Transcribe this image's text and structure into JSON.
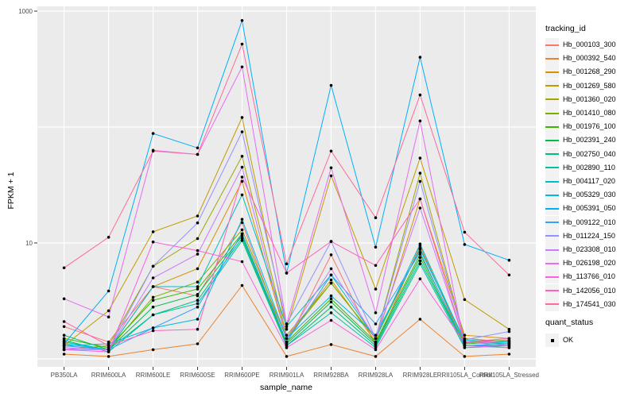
{
  "chart_data": {
    "type": "line",
    "title": "",
    "xlabel": "sample_name",
    "ylabel": "FPKM + 1",
    "y_scale": "log10",
    "ylim": [
      1,
      1000
    ],
    "grid": "major-white-on-gray",
    "legend_position": "right",
    "y_ticks": [
      {
        "label": "1000",
        "value": 1000
      },
      {
        "label": "10",
        "value": 10
      }
    ],
    "y_gridline_values": [
      1000,
      100,
      10,
      1
    ],
    "categories": [
      "PB350LA",
      "RRIM600LA",
      "RRIM600LE",
      "RRIM600SE",
      "RRIM600PE",
      "RRIM901LA",
      "RRIM928BA",
      "RRIM928LA",
      "RRIM928LE",
      "RRII105LA_Control",
      "RRII105LA_Stressed"
    ],
    "legend_title": "tracking_id",
    "series": [
      {
        "name": "Hb_000103_300",
        "color": "#F8766D",
        "values": [
          1.9,
          1.4,
          4.2,
          3.5,
          15,
          1.35,
          7.9,
          1.3,
          9.5,
          1.3,
          1.25
        ]
      },
      {
        "name": "Hb_000392_540",
        "color": "#EA8331",
        "values": [
          1.1,
          1.05,
          1.2,
          1.35,
          4.3,
          1.05,
          1.33,
          1.05,
          2.2,
          1.05,
          1.1
        ]
      },
      {
        "name": "Hb_001268_290",
        "color": "#D89000",
        "values": [
          1.3,
          1.2,
          4.2,
          6.0,
          34,
          1.5,
          4.8,
          1.4,
          24,
          1.6,
          1.5
        ]
      },
      {
        "name": "Hb_001269_580",
        "color": "#C09B00",
        "values": [
          1.3,
          2.6,
          12.5,
          17.1,
          121,
          1.8,
          38,
          4.0,
          54,
          3.25,
          1.8
        ]
      },
      {
        "name": "Hb_001360_020",
        "color": "#A3A500",
        "values": [
          1.2,
          1.3,
          6.3,
          10.9,
          56,
          1.6,
          4.5,
          1.5,
          40,
          1.5,
          1.4
        ]
      },
      {
        "name": "Hb_001410_080",
        "color": "#7CAE00",
        "values": [
          1.4,
          1.2,
          3.4,
          4.6,
          13,
          1.5,
          4.5,
          1.5,
          9.0,
          1.4,
          1.45
        ]
      },
      {
        "name": "Hb_001976_100",
        "color": "#39B600",
        "values": [
          1.5,
          1.25,
          3.2,
          4.0,
          12,
          1.4,
          3.3,
          1.4,
          8.0,
          1.35,
          1.4
        ]
      },
      {
        "name": "Hb_002391_240",
        "color": "#00BB4E",
        "values": [
          1.6,
          1.2,
          2.8,
          3.6,
          11.5,
          1.35,
          3.1,
          1.35,
          7.5,
          1.3,
          1.35
        ]
      },
      {
        "name": "Hb_002750_040",
        "color": "#00BF7D",
        "values": [
          1.45,
          1.15,
          2.4,
          3.2,
          11,
          1.3,
          2.8,
          1.3,
          7.0,
          1.3,
          1.3
        ]
      },
      {
        "name": "Hb_002890_110",
        "color": "#00C1A3",
        "values": [
          1.4,
          1.2,
          2.4,
          3.0,
          10.5,
          1.3,
          2.5,
          1.25,
          6.6,
          1.25,
          1.3
        ]
      },
      {
        "name": "Hb_004117_020",
        "color": "#00BFC4",
        "values": [
          1.35,
          1.2,
          4.2,
          4.2,
          26,
          1.9,
          5.3,
          1.5,
          9.8,
          1.4,
          1.35
        ]
      },
      {
        "name": "Hb_005329_030",
        "color": "#00BAE0",
        "values": [
          1.3,
          1.35,
          1.85,
          2.2,
          16,
          1.5,
          3.5,
          1.6,
          8.8,
          1.45,
          1.4
        ]
      },
      {
        "name": "Hb_005391_050",
        "color": "#00B0F6",
        "values": [
          1.35,
          3.85,
          88,
          66,
          830,
          5.5,
          229,
          9.2,
          400,
          9.7,
          7.1
        ]
      },
      {
        "name": "Hb_009122_010",
        "color": "#35A2FF",
        "values": [
          1.3,
          1.2,
          1.85,
          2.8,
          12,
          1.4,
          5.3,
          2.0,
          8.3,
          1.3,
          1.35
        ]
      },
      {
        "name": "Hb_011224_150",
        "color": "#9590FF",
        "values": [
          1.2,
          1.2,
          6.3,
          14.9,
          91,
          2.0,
          10.3,
          1.5,
          34,
          1.46,
          1.72
        ]
      },
      {
        "name": "Hb_023308_010",
        "color": "#C77CFF",
        "values": [
          1.25,
          1.2,
          5.0,
          8.0,
          45,
          1.5,
          6.0,
          1.5,
          20,
          1.4,
          1.3
        ]
      },
      {
        "name": "Hb_026198_020",
        "color": "#E76BF3",
        "values": [
          3.3,
          2.3,
          63,
          58,
          330,
          2.0,
          44.5,
          2.5,
          113,
          1.3,
          1.25
        ]
      },
      {
        "name": "Hb_113766_010",
        "color": "#FA62DB",
        "values": [
          1.2,
          1.15,
          10.2,
          8.6,
          6.9,
          1.25,
          2.15,
          1.2,
          4.9,
          1.37,
          1.44
        ]
      },
      {
        "name": "Hb_142056_010",
        "color": "#FF62BC",
        "values": [
          2.1,
          1.3,
          1.75,
          1.8,
          37,
          5.5,
          10.3,
          6.4,
          24,
          1.4,
          1.5
        ]
      },
      {
        "name": "Hb_174541_030",
        "color": "#FF6A98",
        "values": [
          6.1,
          11.2,
          62,
          58,
          520,
          6.6,
          62,
          16.5,
          189,
          12.4,
          5.3
        ]
      }
    ],
    "quant_legend": {
      "title": "quant_status",
      "items": [
        {
          "label": "OK"
        }
      ]
    }
  },
  "colors": {
    "panel_bg": "#EBEBEB",
    "grid": "#FFFFFF",
    "tick_text": "#4D4D4D",
    "axis_title": "#000000",
    "point": "#000000",
    "legend_key_bg": "#F2F2F2",
    "tick_mark": "#333333"
  }
}
